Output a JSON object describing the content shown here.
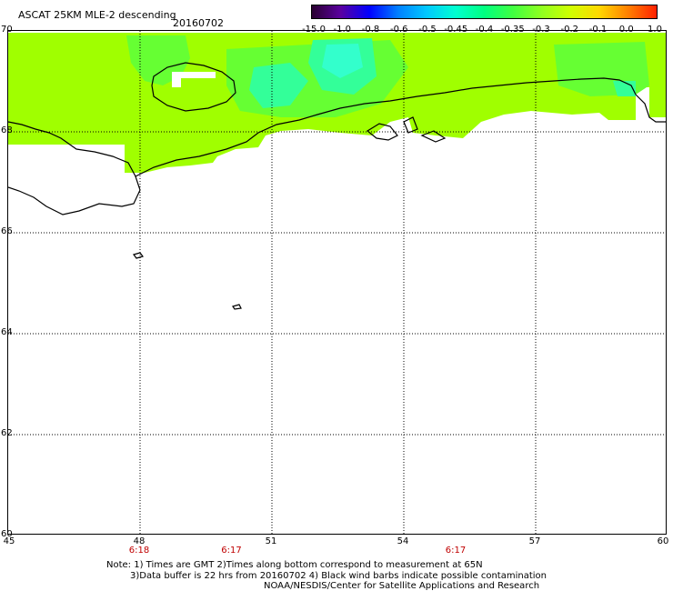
{
  "header": {
    "title": "ASCAT 25KM MLE-2 descending",
    "date": "20160702"
  },
  "colorbar": {
    "labels": [
      "-15.0",
      "-1.0",
      "-0.8",
      "-0.6",
      "-0.5",
      "-0.45",
      "-0.4",
      "-0.35",
      "-0.3",
      "-0.2",
      "-0.1",
      "0.0",
      "1.0"
    ],
    "colors": [
      "#2a0030",
      "#5a00a0",
      "#0000ff",
      "#0080ff",
      "#00c8ff",
      "#00ffd0",
      "#00ff80",
      "#40ff40",
      "#90ff20",
      "#d0ff00",
      "#ffd800",
      "#ff8000",
      "#ff2000"
    ]
  },
  "chart_data": {
    "type": "heatmap",
    "title": "ASCAT 25KM MLE-2 descending",
    "lon_range": [
      45,
      60
    ],
    "lat_range": [
      60,
      70
    ],
    "lat_ticks": [
      "70",
      "68",
      "66",
      "64",
      "62",
      "60"
    ],
    "lon_ticks": [
      "45",
      "48",
      "51",
      "54",
      "57",
      "60"
    ],
    "pass_times": [
      {
        "lon": 48,
        "label": "6:18"
      },
      {
        "lon": 50.1,
        "label": "6:17"
      },
      {
        "lon": 55.2,
        "label": "6:17"
      }
    ]
  },
  "notes": {
    "line1": "Note: 1) Times are GMT 2)Times along bottom correspond to measurement at 65N",
    "line2": "3)Data buffer is 22 hrs from 20160702 4) Black wind barbs indicate possible contamination",
    "line3": "NOAA/NESDIS/Center for Satellite Applications and Research"
  },
  "colors": {
    "base_data": "#a0ff00",
    "mid_data": "#66ff33",
    "high_data": "#33ff99",
    "peak_data": "#33ffcc"
  }
}
